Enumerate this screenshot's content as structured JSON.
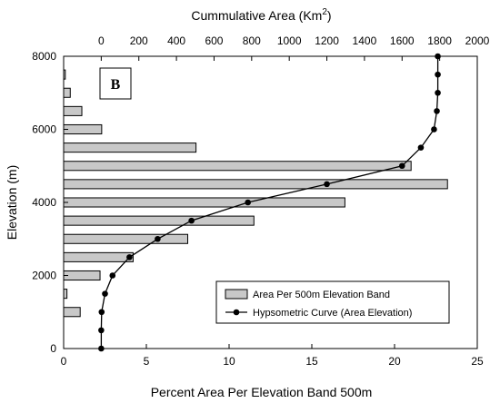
{
  "chart_data": {
    "type": "bar",
    "orientation": "horizontal",
    "panel_label": "B",
    "x_bottom": {
      "label": "Percent Area Per Elevation Band 500m",
      "lim": [
        0,
        25
      ],
      "ticks": [
        0,
        5,
        10,
        15,
        20,
        25
      ]
    },
    "x_top": {
      "label_text": "Cummulative Area (Km",
      "label_sup": "2",
      "label_close": ")",
      "lim": [
        -200,
        2000
      ],
      "ticks": [
        0,
        200,
        400,
        600,
        800,
        1000,
        1200,
        1400,
        1600,
        1800,
        2000
      ]
    },
    "y": {
      "label": "Elevation (m)",
      "lim": [
        0,
        8000
      ],
      "ticks": [
        0,
        2000,
        4000,
        6000,
        8000
      ]
    },
    "series": [
      {
        "name": "Area Per 500m Elevation Band",
        "type": "bar",
        "band_width": 250,
        "bands": [
          {
            "y": 1000,
            "value": 1.0
          },
          {
            "y": 1500,
            "value": 0.2
          },
          {
            "y": 2000,
            "value": 2.2
          },
          {
            "y": 2500,
            "value": 4.2
          },
          {
            "y": 3000,
            "value": 7.5
          },
          {
            "y": 3500,
            "value": 11.5
          },
          {
            "y": 4000,
            "value": 17.0
          },
          {
            "y": 4500,
            "value": 23.2
          },
          {
            "y": 5000,
            "value": 21.0
          },
          {
            "y": 5500,
            "value": 8.0
          },
          {
            "y": 6000,
            "value": 2.3
          },
          {
            "y": 6500,
            "value": 1.1
          },
          {
            "y": 7000,
            "value": 0.4
          },
          {
            "y": 7500,
            "value": 0.1
          }
        ]
      },
      {
        "name": "Hypsometric Curve (Area Elevation)",
        "type": "line",
        "axis": "x_top",
        "points": [
          {
            "x": 0,
            "y": 0
          },
          {
            "x": 0,
            "y": 500
          },
          {
            "x": 2,
            "y": 1000
          },
          {
            "x": 20,
            "y": 1500
          },
          {
            "x": 60,
            "y": 2000
          },
          {
            "x": 150,
            "y": 2500
          },
          {
            "x": 300,
            "y": 3000
          },
          {
            "x": 480,
            "y": 3500
          },
          {
            "x": 780,
            "y": 4000
          },
          {
            "x": 1200,
            "y": 4500
          },
          {
            "x": 1600,
            "y": 5000
          },
          {
            "x": 1700,
            "y": 5500
          },
          {
            "x": 1770,
            "y": 6000
          },
          {
            "x": 1785,
            "y": 6500
          },
          {
            "x": 1790,
            "y": 7000
          },
          {
            "x": 1790,
            "y": 7500
          },
          {
            "x": 1790,
            "y": 8000
          }
        ]
      }
    ],
    "legend_position": "bottom-right",
    "grid": false
  }
}
